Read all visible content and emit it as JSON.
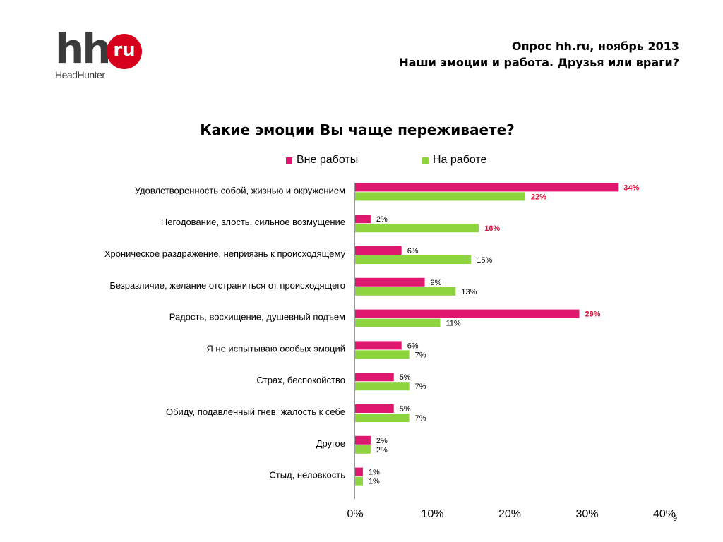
{
  "logo": {
    "brand": "hh",
    "domain": "ru",
    "subtitle": "HeadHunter"
  },
  "header": {
    "line1": "Опрос hh.ru, ноябрь 2013",
    "line2": "Наши эмоции и работа. Друзья или враги?"
  },
  "page_number": "9",
  "colors": {
    "outside_work": "#e0176e",
    "at_work": "#8ed43f",
    "emphasis_label": "#e0103a",
    "brand_red": "#d6001c"
  },
  "chart_data": {
    "type": "bar",
    "orientation": "horizontal",
    "title": "Какие эмоции Вы чаще переживаете?",
    "categories": [
      "Удовлетворенность собой, жизнью и окружением",
      "Негодование, злость, сильное возмущение",
      "Хроническое раздражение, неприязнь к происходящему",
      "Безразличие, желание отстраниться от происходящего",
      "Радость, восхищение, душевный подъем",
      "Я не испытываю особых эмоций",
      "Страх, беспокойство",
      "Обиду, подавленный гнев, жалость к себе",
      "Другое",
      "Стыд, неловкость"
    ],
    "series": [
      {
        "name": "Вне работы",
        "color": "#e0176e",
        "values": [
          34,
          2,
          6,
          9,
          29,
          6,
          5,
          5,
          2,
          1
        ],
        "labels": [
          "34%",
          "2%",
          "6%",
          "9%",
          "29%",
          "6%",
          "5%",
          "5%",
          "2%",
          "1%"
        ]
      },
      {
        "name": "На работе",
        "color": "#8ed43f",
        "values": [
          22,
          16,
          15,
          13,
          11,
          7,
          7,
          7,
          2,
          1
        ],
        "labels": [
          "22%",
          "16%",
          "15%",
          "13%",
          "11%",
          "7%",
          "7%",
          "7%",
          "2%",
          "1%"
        ]
      }
    ],
    "highlighted_labels": {
      "Вне работы": [
        0,
        4
      ],
      "На работе": [
        0,
        1
      ]
    },
    "xlim": [
      0,
      40
    ],
    "x_ticks": [
      "0%",
      "10%",
      "20%",
      "30%",
      "40%"
    ],
    "legend_position": "top",
    "grid": false
  }
}
